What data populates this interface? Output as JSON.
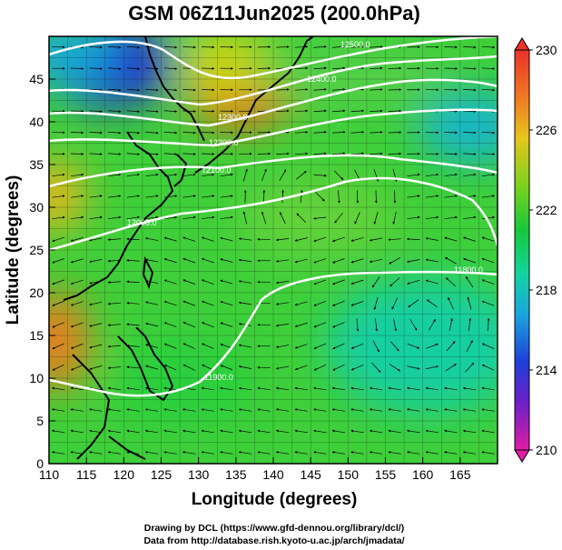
{
  "title": "GSM 06Z11Jun2025 (200.0hPa)",
  "xlabel": "Longitude (degrees)",
  "ylabel": "Latitude  (degrees)",
  "x_ticks": [
    "110",
    "115",
    "120",
    "125",
    "130",
    "135",
    "140",
    "145",
    "150",
    "155",
    "160",
    "165"
  ],
  "y_ticks": [
    "0",
    "5",
    "10",
    "15",
    "20",
    "25",
    "30",
    "35",
    "40",
    "45"
  ],
  "colorbar": {
    "labels": [
      "230",
      "226",
      "222",
      "218",
      "214",
      "210"
    ],
    "min": 210,
    "max": 230
  },
  "contour_labels": [
    "12500.0",
    "12400.0",
    "12300.0",
    "12200.0",
    "12100.0",
    "12000.0",
    "11900.0",
    "11800.0"
  ],
  "credits": {
    "line1": "Drawing by DCL (https://www.gfd-dennou.org/library/dcl/)",
    "line2": "Data from http://database.rish.kyoto-u.ac.jp/arch/jmadata/"
  },
  "chart_data": {
    "type": "heatmap",
    "title": "GSM 06Z11Jun2025 (200.0hPa)",
    "xlabel": "Longitude (degrees)",
    "ylabel": "Latitude  (degrees)",
    "xlim": [
      110,
      170
    ],
    "ylim": [
      0,
      50
    ],
    "colorbar_range": [
      210,
      230
    ],
    "features": [
      {
        "lon": 121,
        "lat": 46,
        "value": 213
      },
      {
        "lon": 136,
        "lat": 44,
        "value": 228
      },
      {
        "lon": 110,
        "lat": 34,
        "value": 227
      },
      {
        "lon": 111,
        "lat": 15,
        "value": 228
      },
      {
        "lon": 160,
        "lat": 17,
        "value": 217
      },
      {
        "lon": 145,
        "lat": 31,
        "value": 221
      },
      {
        "lon": 168,
        "lat": 42,
        "value": 219
      }
    ]
  }
}
